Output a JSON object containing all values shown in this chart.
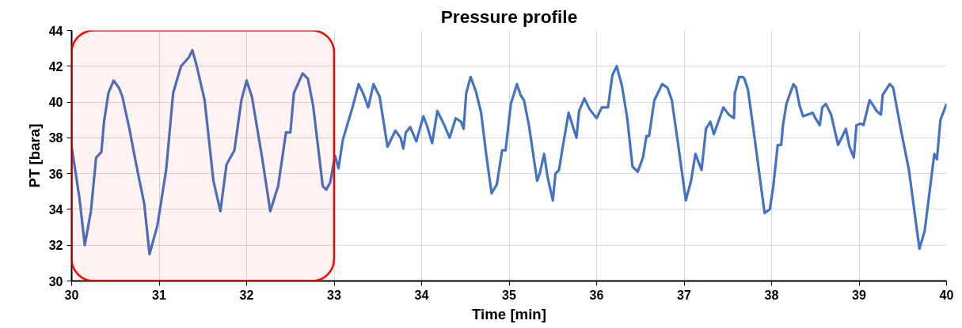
{
  "chart_data": {
    "type": "line",
    "title": "Pressure profile",
    "xlabel": "Time [min]",
    "ylabel": "PT [bara]",
    "xlim": [
      30,
      40
    ],
    "xticks": [
      30,
      31,
      32,
      33,
      34,
      35,
      36,
      37,
      38,
      39,
      40
    ],
    "ylim": [
      30,
      44
    ],
    "yticks": [
      30,
      32,
      34,
      36,
      38,
      40,
      42,
      44
    ],
    "grid": true,
    "marker": "none",
    "line_style": "solid",
    "bands": [
      {
        "axis": "x",
        "from": 30,
        "to": 33,
        "color": "#ff0000"
      }
    ],
    "series": [
      {
        "color": "#4472c4",
        "x": [
          30.0,
          30.09,
          30.15,
          30.22,
          30.28,
          30.34,
          30.37,
          30.42,
          30.48,
          30.54,
          30.58,
          30.66,
          30.73,
          30.83,
          30.89,
          30.98,
          31.08,
          31.16,
          31.25,
          31.34,
          31.38,
          31.43,
          31.52,
          31.62,
          31.7,
          31.77,
          31.86,
          31.94,
          32.0,
          32.06,
          32.18,
          32.27,
          32.36,
          32.45,
          32.5,
          32.54,
          32.64,
          32.7,
          32.76,
          32.87,
          32.91,
          32.955,
          33.01,
          33.05,
          33.1,
          33.21,
          33.28,
          33.33,
          33.39,
          33.45,
          33.52,
          33.61,
          33.7,
          33.76,
          33.79,
          33.82,
          33.87,
          33.94,
          34.02,
          34.06,
          34.12,
          34.18,
          34.26,
          34.32,
          34.39,
          34.45,
          34.48,
          34.51,
          34.56,
          34.62,
          34.68,
          34.74,
          34.8,
          34.86,
          34.92,
          34.96,
          35.02,
          35.09,
          35.13,
          35.17,
          35.23,
          35.32,
          35.35,
          35.4,
          35.44,
          35.5,
          35.53,
          35.57,
          35.61,
          35.68,
          35.77,
          35.8,
          35.86,
          35.92,
          36.0,
          36.06,
          36.13,
          36.18,
          36.23,
          36.29,
          36.35,
          36.41,
          36.47,
          36.53,
          36.57,
          36.6,
          36.66,
          36.75,
          36.81,
          36.86,
          36.93,
          37.02,
          37.08,
          37.13,
          37.2,
          37.25,
          37.3,
          37.34,
          37.45,
          37.51,
          37.57,
          37.58,
          37.63,
          37.67,
          37.69,
          37.73,
          37.8,
          37.86,
          37.92,
          37.98,
          38.02,
          38.07,
          38.11,
          38.13,
          38.17,
          38.25,
          38.28,
          38.32,
          38.36,
          38.47,
          38.5,
          38.55,
          38.58,
          38.62,
          38.68,
          38.76,
          38.85,
          38.89,
          38.94,
          38.97,
          39.02,
          39.05,
          39.12,
          39.15,
          39.2,
          39.25,
          39.27,
          39.35,
          39.39,
          39.48,
          39.57,
          39.69,
          39.75,
          39.86,
          39.89,
          39.93,
          40.0
        ],
        "values": [
          37.5,
          34.6,
          32.0,
          33.9,
          36.9,
          37.2,
          38.9,
          40.5,
          41.2,
          40.8,
          40.3,
          38.5,
          36.7,
          34.3,
          31.5,
          33.1,
          36.2,
          40.5,
          42.0,
          42.5,
          42.9,
          42.0,
          40.1,
          35.6,
          33.9,
          36.5,
          37.3,
          40.1,
          41.2,
          40.3,
          36.8,
          33.9,
          35.3,
          38.3,
          38.3,
          40.5,
          41.6,
          41.3,
          39.8,
          35.3,
          35.1,
          35.5,
          37.0,
          36.3,
          37.9,
          39.7,
          41.0,
          40.5,
          39.7,
          41.0,
          40.3,
          37.5,
          38.4,
          38.0,
          37.4,
          38.3,
          38.6,
          37.8,
          39.2,
          38.7,
          37.7,
          39.5,
          38.7,
          38.0,
          39.1,
          38.9,
          38.5,
          40.5,
          41.4,
          40.6,
          39.4,
          37.0,
          34.9,
          35.4,
          37.3,
          37.3,
          39.9,
          41.0,
          40.4,
          40.1,
          38.6,
          35.6,
          36.0,
          37.1,
          35.8,
          34.5,
          36.0,
          36.2,
          37.4,
          39.4,
          38.0,
          39.5,
          40.2,
          39.6,
          39.1,
          39.7,
          39.7,
          41.5,
          42.0,
          40.9,
          39.1,
          36.4,
          36.1,
          36.9,
          38.1,
          38.1,
          40.1,
          41.0,
          40.8,
          40.1,
          37.7,
          34.5,
          35.6,
          37.1,
          36.2,
          38.5,
          38.9,
          38.2,
          39.7,
          39.3,
          39.1,
          40.5,
          41.4,
          41.4,
          41.3,
          40.7,
          38.2,
          36.0,
          33.8,
          34.0,
          35.3,
          37.6,
          37.6,
          38.7,
          39.9,
          41.0,
          40.8,
          39.8,
          39.2,
          39.4,
          39.1,
          38.7,
          39.7,
          39.9,
          39.3,
          37.6,
          38.5,
          37.5,
          36.9,
          38.7,
          38.8,
          38.7,
          40.1,
          39.9,
          39.5,
          39.3,
          40.4,
          41.0,
          40.8,
          38.4,
          36.2,
          31.8,
          32.8,
          37.1,
          36.8,
          39.0,
          39.9
        ]
      }
    ]
  }
}
